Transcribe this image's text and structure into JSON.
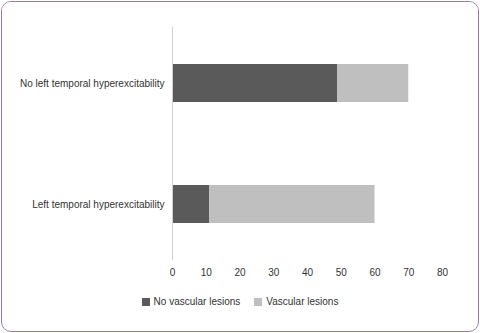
{
  "chart_data": {
    "type": "bar",
    "orientation": "horizontal",
    "stacked": true,
    "categories": [
      "No left temporal hyperexcitability",
      "Left temporal hyperexcitability"
    ],
    "series": [
      {
        "name": "No vascular lesions",
        "color": "#5a5a5a",
        "values": [
          49,
          11
        ]
      },
      {
        "name": "Vascular lesions",
        "color": "#bfbfbf",
        "values": [
          21,
          49
        ]
      }
    ],
    "xlim": [
      0,
      80
    ],
    "xticks": [
      0,
      10,
      20,
      30,
      40,
      50,
      60,
      70,
      80
    ],
    "grid": false,
    "legend": "bottom"
  }
}
